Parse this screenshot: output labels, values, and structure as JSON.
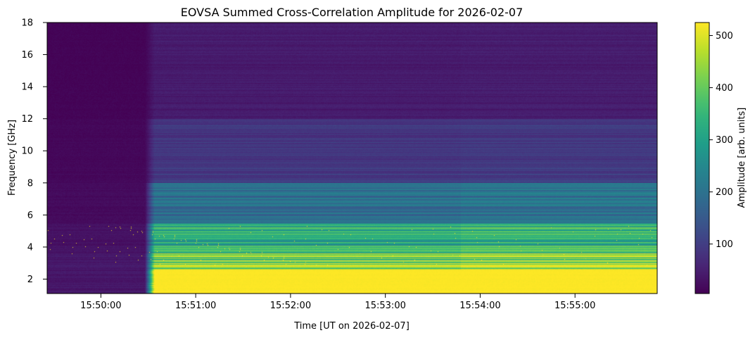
{
  "chart_data": {
    "type": "heatmap",
    "title": "EOVSA Summed Cross-Correlation Amplitude for 2026-02-07",
    "xlabel": "Time [UT on 2026-02-07]",
    "ylabel": "Frequency [GHz]",
    "colorbar_label": "Amplitude [arb. units]",
    "colormap": "viridis",
    "xlim": [
      "15:49:26",
      "15:55:52"
    ],
    "ylim": [
      1.1,
      18.0
    ],
    "clim": [
      5,
      525
    ],
    "x_ticks": [
      "15:50:00",
      "15:51:00",
      "15:52:00",
      "15:53:00",
      "15:54:00",
      "15:55:00"
    ],
    "y_ticks": [
      2,
      4,
      6,
      8,
      10,
      12,
      14,
      16,
      18
    ],
    "colorbar_ticks": [
      100,
      200,
      300,
      400,
      500
    ],
    "grid": false,
    "events": {
      "flare_onset": "15:50:32",
      "second_step": "15:53:48"
    },
    "approx_amplitude_profiles": [
      {
        "freq_range_ghz": [
          1.1,
          2.6
        ],
        "pre_flare": 40,
        "post_flare": 525
      },
      {
        "freq_range_ghz": [
          2.6,
          3.6
        ],
        "pre_flare": 40,
        "post_flare": 430
      },
      {
        "freq_range_ghz": [
          3.6,
          5.5
        ],
        "pre_flare": 30,
        "post_flare": 330
      },
      {
        "freq_range_ghz": [
          5.5,
          8.0
        ],
        "pre_flare": 20,
        "post_flare": 200
      },
      {
        "freq_range_ghz": [
          8.0,
          12.0
        ],
        "pre_flare": 15,
        "post_flare": 90
      },
      {
        "freq_range_ghz": [
          12.0,
          18.0
        ],
        "pre_flare": 10,
        "post_flare": 45
      }
    ]
  }
}
